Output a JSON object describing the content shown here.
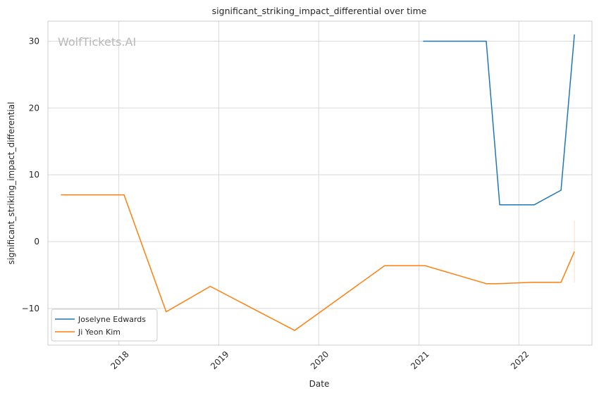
{
  "chart_data": {
    "type": "line",
    "title": "significant_striking_impact_differential over time",
    "xlabel": "Date",
    "ylabel": "significant_striking_impact_differential",
    "watermark": "WolfTickets.AI",
    "x_ticks": [
      "2018",
      "2019",
      "2020",
      "2021",
      "2022"
    ],
    "y_ticks": [
      "−10",
      "0",
      "10",
      "20",
      "30"
    ],
    "y_tick_values": [
      -10,
      0,
      10,
      20,
      30
    ],
    "xlim": [
      "2017-04-17",
      "2022-09-25"
    ],
    "ylim": [
      -15.5,
      33
    ],
    "grid": true,
    "legend_position": "lower-left",
    "series": [
      {
        "name": "Joselyne Edwards",
        "color": "#1f77b4",
        "points": [
          [
            "2021-01-16",
            30.0
          ],
          [
            "2021-09-04",
            30.0
          ],
          [
            "2021-10-23",
            5.5
          ],
          [
            "2022-02-26",
            5.5
          ],
          [
            "2022-06-04",
            7.7
          ],
          [
            "2022-07-23",
            31.0
          ]
        ]
      },
      {
        "name": "Ji Yeon Kim",
        "color": "#ff7f0e",
        "points": [
          [
            "2017-06-03",
            7.0
          ],
          [
            "2018-01-20",
            7.0
          ],
          [
            "2018-06-23",
            -10.5
          ],
          [
            "2018-12-01",
            -6.7
          ],
          [
            "2019-10-05",
            -13.3
          ],
          [
            "2020-08-29",
            -3.6
          ],
          [
            "2021-01-23",
            -3.6
          ],
          [
            "2021-09-04",
            -6.3
          ],
          [
            "2021-10-16",
            -6.3
          ],
          [
            "2022-02-19",
            -6.1
          ],
          [
            "2022-06-04",
            -6.1
          ],
          [
            "2022-07-23",
            -1.5
          ]
        ],
        "error_band": {
          "x": "2022-07-23",
          "low": -6.1,
          "high": 3.2
        }
      }
    ]
  }
}
